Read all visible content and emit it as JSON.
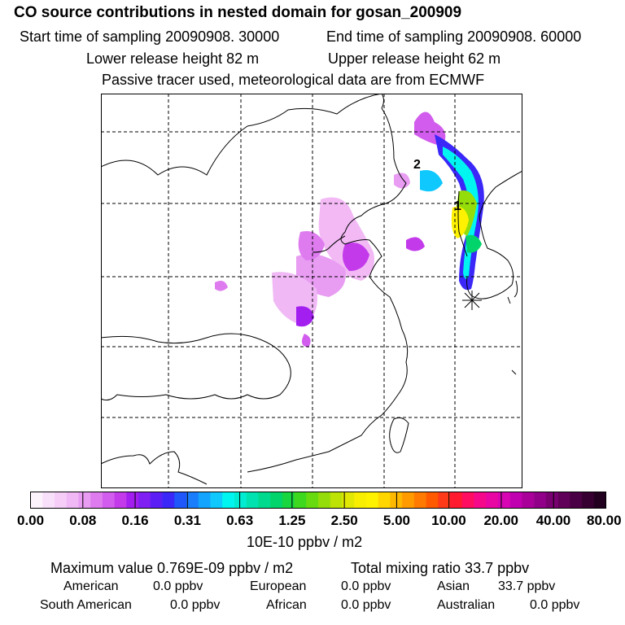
{
  "header": {
    "title": "CO  source contributions in nested domain for gosan_200909",
    "start_label": "Start time of sampling 20090908. 30000",
    "end_label": "End time of sampling 20090908. 60000",
    "lower_label": "Lower release height   82 m",
    "upper_label": "Upper release height   62 m",
    "info": "Passive tracer used, meteorological data are from ECMWF"
  },
  "map": {
    "labels": [
      "1",
      "2"
    ],
    "receptor_marker": "*"
  },
  "colorbar": {
    "ticks": [
      "0.00",
      "0.08",
      "0.16",
      "0.31",
      "0.63",
      "1.25",
      "2.50",
      "5.00",
      "10.00",
      "20.00",
      "40.00",
      "80.00"
    ],
    "unit": "10E-10 ppbv / m2",
    "colors": [
      "#fdf3fd",
      "#f9e0fa",
      "#f5cdf7",
      "#f0b9f5",
      "#e89cf2",
      "#de7cef",
      "#d15ced",
      "#c33aeb",
      "#a21ff0",
      "#7f1ff3",
      "#5b1ff6",
      "#3a27f8",
      "#2057fb",
      "#1a7dfc",
      "#14a3fd",
      "#0ec8fe",
      "#00f5f0",
      "#00ecd2",
      "#00e3b0",
      "#00da8e",
      "#00d46a",
      "#17d640",
      "#3ed81e",
      "#67db10",
      "#94dd0a",
      "#bde206",
      "#e0e804",
      "#f8ee02",
      "#fff200",
      "#ffd600",
      "#ffb800",
      "#ff9a00",
      "#ff7a00",
      "#ff5a00",
      "#ff3a18",
      "#ff1a30",
      "#ff0d60",
      "#f5098a",
      "#e807a2",
      "#d805b4",
      "#c000b0",
      "#a80099",
      "#900088",
      "#780070",
      "#600058",
      "#4a0044",
      "#360030",
      "#220020"
    ]
  },
  "summary": {
    "max_label": "Maximum value  0.769E-09 ppbv / m2",
    "total_label": "Total mixing ratio       33.7 ppbv",
    "sources": [
      {
        "name": "American",
        "value": "0.0 ppbv"
      },
      {
        "name": "European",
        "value": "0.0 ppbv"
      },
      {
        "name": "Asian",
        "value": "33.7 ppbv"
      },
      {
        "name": "South American",
        "value": "0.0 ppbv"
      },
      {
        "name": "African",
        "value": "0.0 ppbv"
      },
      {
        "name": "Australian",
        "value": "0.0 ppbv"
      }
    ]
  }
}
